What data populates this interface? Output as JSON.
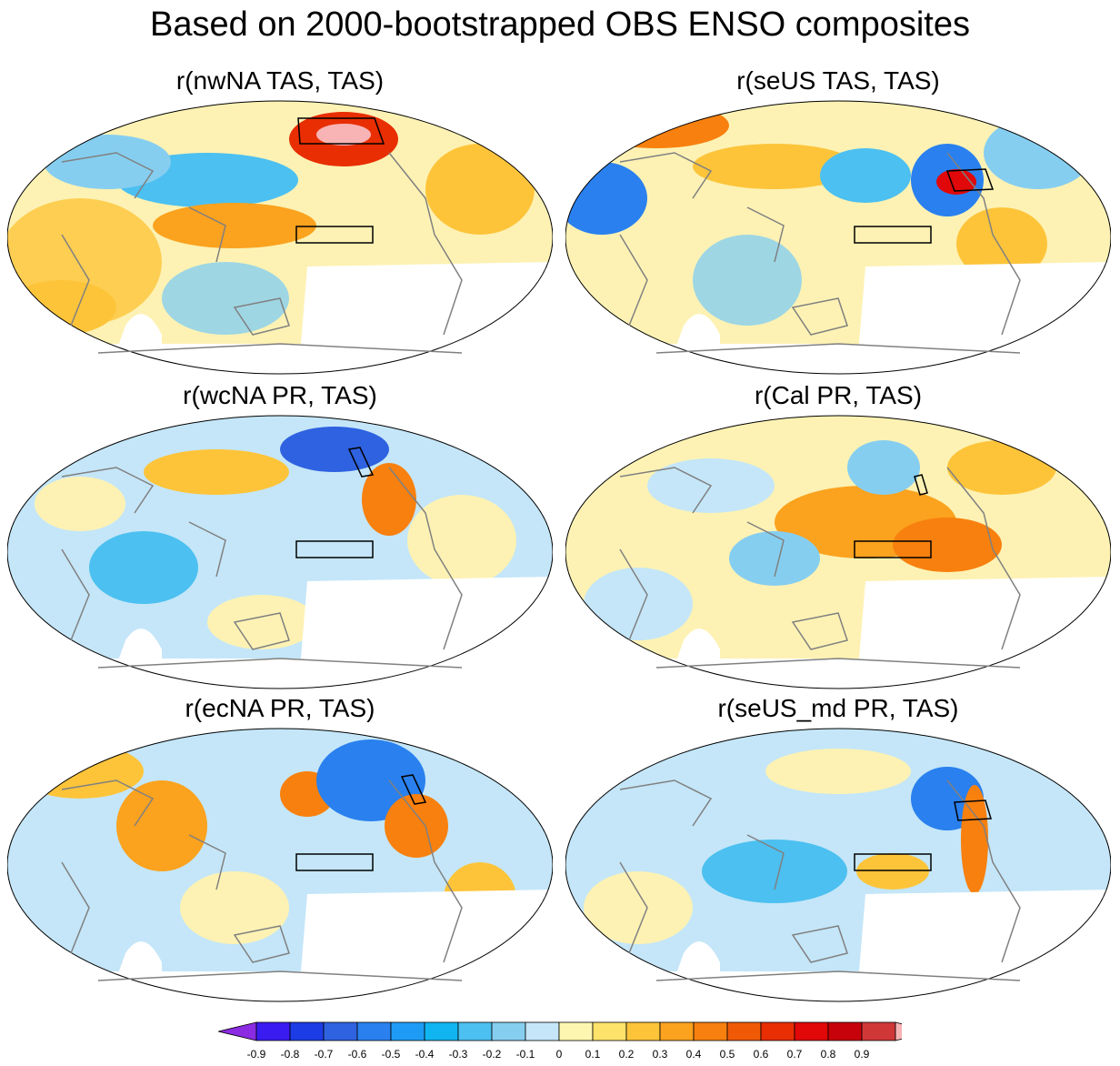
{
  "figure": {
    "title": "Based on 2000-bootstrapped OBS ENSO composites"
  },
  "panels": [
    {
      "title": "r(nwNA TAS, TAS)",
      "region": "nwNA",
      "variable": "TAS"
    },
    {
      "title": "r(seUS TAS, TAS)",
      "region": "seUS",
      "variable": "TAS"
    },
    {
      "title": "r(wcNA PR, TAS)",
      "region": "wcNA",
      "variable": "PR"
    },
    {
      "title": "r(Cal PR, TAS)",
      "region": "Cal",
      "variable": "PR"
    },
    {
      "title": "r(ecNA PR, TAS)",
      "region": "ecNA",
      "variable": "PR"
    },
    {
      "title": "r(seUS_md PR, TAS)",
      "region": "seUS_md",
      "variable": "PR"
    }
  ],
  "colorbar": {
    "labels": [
      "-0.9",
      "-0.8",
      "-0.7",
      "-0.6",
      "-0.5",
      "-0.4",
      "-0.3",
      "-0.2",
      "-0.1",
      "0",
      "0.1",
      "0.2",
      "0.3",
      "0.4",
      "0.5",
      "0.6",
      "0.7",
      "0.8",
      "0.9"
    ],
    "colors": [
      "#8b2be2",
      "#3a1cf0",
      "#1c3ce6",
      "#2f62e0",
      "#2a80ee",
      "#1e9cf5",
      "#10b4f0",
      "#4cc0f0",
      "#86cef0",
      "#c4e6f8",
      "#fdf6b0",
      "#fde36a",
      "#fdc43a",
      "#fba21e",
      "#f8800e",
      "#f05a06",
      "#e82e02",
      "#e00808",
      "#c8020a",
      "#d03838",
      "#f8b4b4"
    ]
  },
  "colors": {
    "coast": "#808080",
    "box": "#000000",
    "ocean_base": "#fdf2b4"
  }
}
